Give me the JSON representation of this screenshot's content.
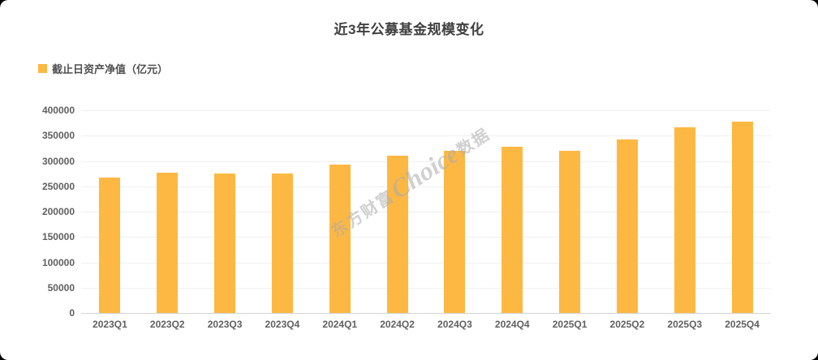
{
  "title": "近3年公募基金规模变化",
  "legend": {
    "label": "截止日资产净值（亿元）",
    "swatch_color": "#FDB843"
  },
  "watermark": {
    "prefix": "东方财富",
    "brand": "Choice",
    "suffix": "数据"
  },
  "chart_data": {
    "type": "bar",
    "title": "近3年公募基金规模变化",
    "series_name": "截止日资产净值（亿元）",
    "categories": [
      "2023Q1",
      "2023Q2",
      "2023Q3",
      "2023Q4",
      "2024Q1",
      "2024Q2",
      "2024Q3",
      "2024Q4",
      "2025Q1",
      "2025Q2",
      "2025Q3",
      "2025Q4"
    ],
    "values": [
      266800,
      276900,
      274800,
      276000,
      292400,
      310800,
      320700,
      327500,
      320400,
      342700,
      365700,
      377500
    ],
    "bar_color": "#FDB843",
    "xlabel": "",
    "ylabel": "",
    "ylim": [
      0,
      400000
    ],
    "ytick_interval": 50000,
    "yticks": [
      "0",
      "50000",
      "100000",
      "150000",
      "200000",
      "250000",
      "300000",
      "350000",
      "400000"
    ],
    "grid": true,
    "legend_position": "top-left"
  }
}
